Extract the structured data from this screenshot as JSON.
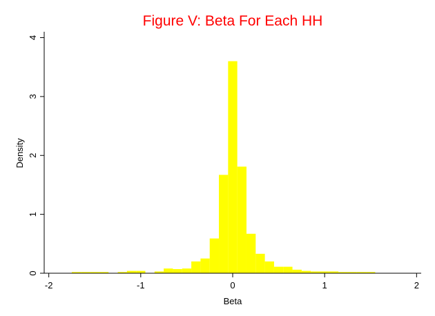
{
  "chart_data": {
    "type": "bar",
    "title": "Figure V: Beta For Each HH",
    "xlabel": "Beta",
    "ylabel": "Density",
    "xlim": [
      -2.05,
      2.05
    ],
    "ylim": [
      0,
      4.1
    ],
    "xticks": [
      -2,
      -1,
      0,
      1,
      2
    ],
    "xtick_labels": [
      "-2",
      "-1",
      "0",
      "1",
      "2"
    ],
    "yticks": [
      0,
      1,
      2,
      3,
      4
    ],
    "ytick_labels": [
      "0",
      "1",
      "2",
      "3",
      "4"
    ],
    "grid": false,
    "legend": "none",
    "colors": {
      "bar": "#ffff00",
      "title": "#ff0000",
      "axis": "#000000",
      "background": "#ffffff"
    },
    "bins": [
      {
        "x0": -1.75,
        "x1": -1.65,
        "value": 0.02
      },
      {
        "x0": -1.65,
        "x1": -1.55,
        "value": 0.02
      },
      {
        "x0": -1.55,
        "x1": -1.45,
        "value": 0.02
      },
      {
        "x0": -1.45,
        "x1": -1.35,
        "value": 0.02
      },
      {
        "x0": -1.25,
        "x1": -1.15,
        "value": 0.02
      },
      {
        "x0": -1.15,
        "x1": -1.05,
        "value": 0.04
      },
      {
        "x0": -1.05,
        "x1": -0.95,
        "value": 0.04
      },
      {
        "x0": -0.85,
        "x1": -0.75,
        "value": 0.03
      },
      {
        "x0": -0.75,
        "x1": -0.65,
        "value": 0.08
      },
      {
        "x0": -0.65,
        "x1": -0.55,
        "value": 0.07
      },
      {
        "x0": -0.55,
        "x1": -0.45,
        "value": 0.08
      },
      {
        "x0": -0.45,
        "x1": -0.35,
        "value": 0.2
      },
      {
        "x0": -0.35,
        "x1": -0.25,
        "value": 0.25
      },
      {
        "x0": -0.25,
        "x1": -0.15,
        "value": 0.59
      },
      {
        "x0": -0.15,
        "x1": -0.05,
        "value": 1.67
      },
      {
        "x0": -0.05,
        "x1": 0.05,
        "value": 3.6
      },
      {
        "x0": 0.05,
        "x1": 0.15,
        "value": 1.81
      },
      {
        "x0": 0.15,
        "x1": 0.25,
        "value": 0.67
      },
      {
        "x0": 0.25,
        "x1": 0.35,
        "value": 0.33
      },
      {
        "x0": 0.35,
        "x1": 0.45,
        "value": 0.2
      },
      {
        "x0": 0.45,
        "x1": 0.55,
        "value": 0.11
      },
      {
        "x0": 0.55,
        "x1": 0.65,
        "value": 0.11
      },
      {
        "x0": 0.65,
        "x1": 0.75,
        "value": 0.06
      },
      {
        "x0": 0.75,
        "x1": 0.85,
        "value": 0.04
      },
      {
        "x0": 0.85,
        "x1": 0.95,
        "value": 0.03
      },
      {
        "x0": 0.95,
        "x1": 1.05,
        "value": 0.03
      },
      {
        "x0": 1.05,
        "x1": 1.15,
        "value": 0.03
      },
      {
        "x0": 1.15,
        "x1": 1.25,
        "value": 0.02
      },
      {
        "x0": 1.25,
        "x1": 1.35,
        "value": 0.02
      },
      {
        "x0": 1.35,
        "x1": 1.45,
        "value": 0.02
      },
      {
        "x0": 1.45,
        "x1": 1.55,
        "value": 0.02
      }
    ]
  }
}
